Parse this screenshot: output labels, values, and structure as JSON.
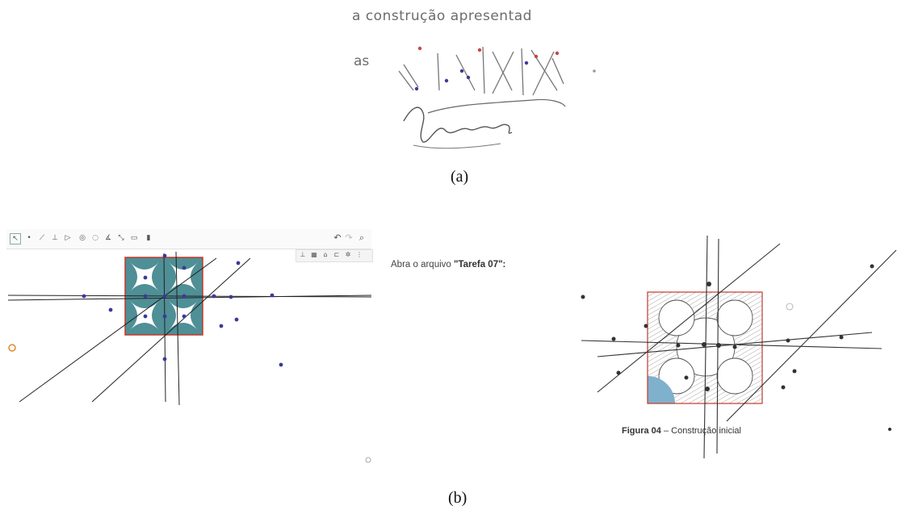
{
  "panel_a": {
    "scan_line_1": "a construção apresentad",
    "scan_line_2": "as",
    "caption": "(a)"
  },
  "panel_b": {
    "instruction_prefix": "Abra o arquivo ",
    "instruction_file": "\"Tarefa 07\":",
    "figure_caption_label": "Figura 04",
    "figure_caption_text": " – Construção inicial",
    "caption": "(b)"
  },
  "colors": {
    "tile_fill": "#4f8f96",
    "square_border": "#c0392b",
    "point_blue": "#3a3a9a",
    "sketch_fill": "#7fb0cc"
  }
}
